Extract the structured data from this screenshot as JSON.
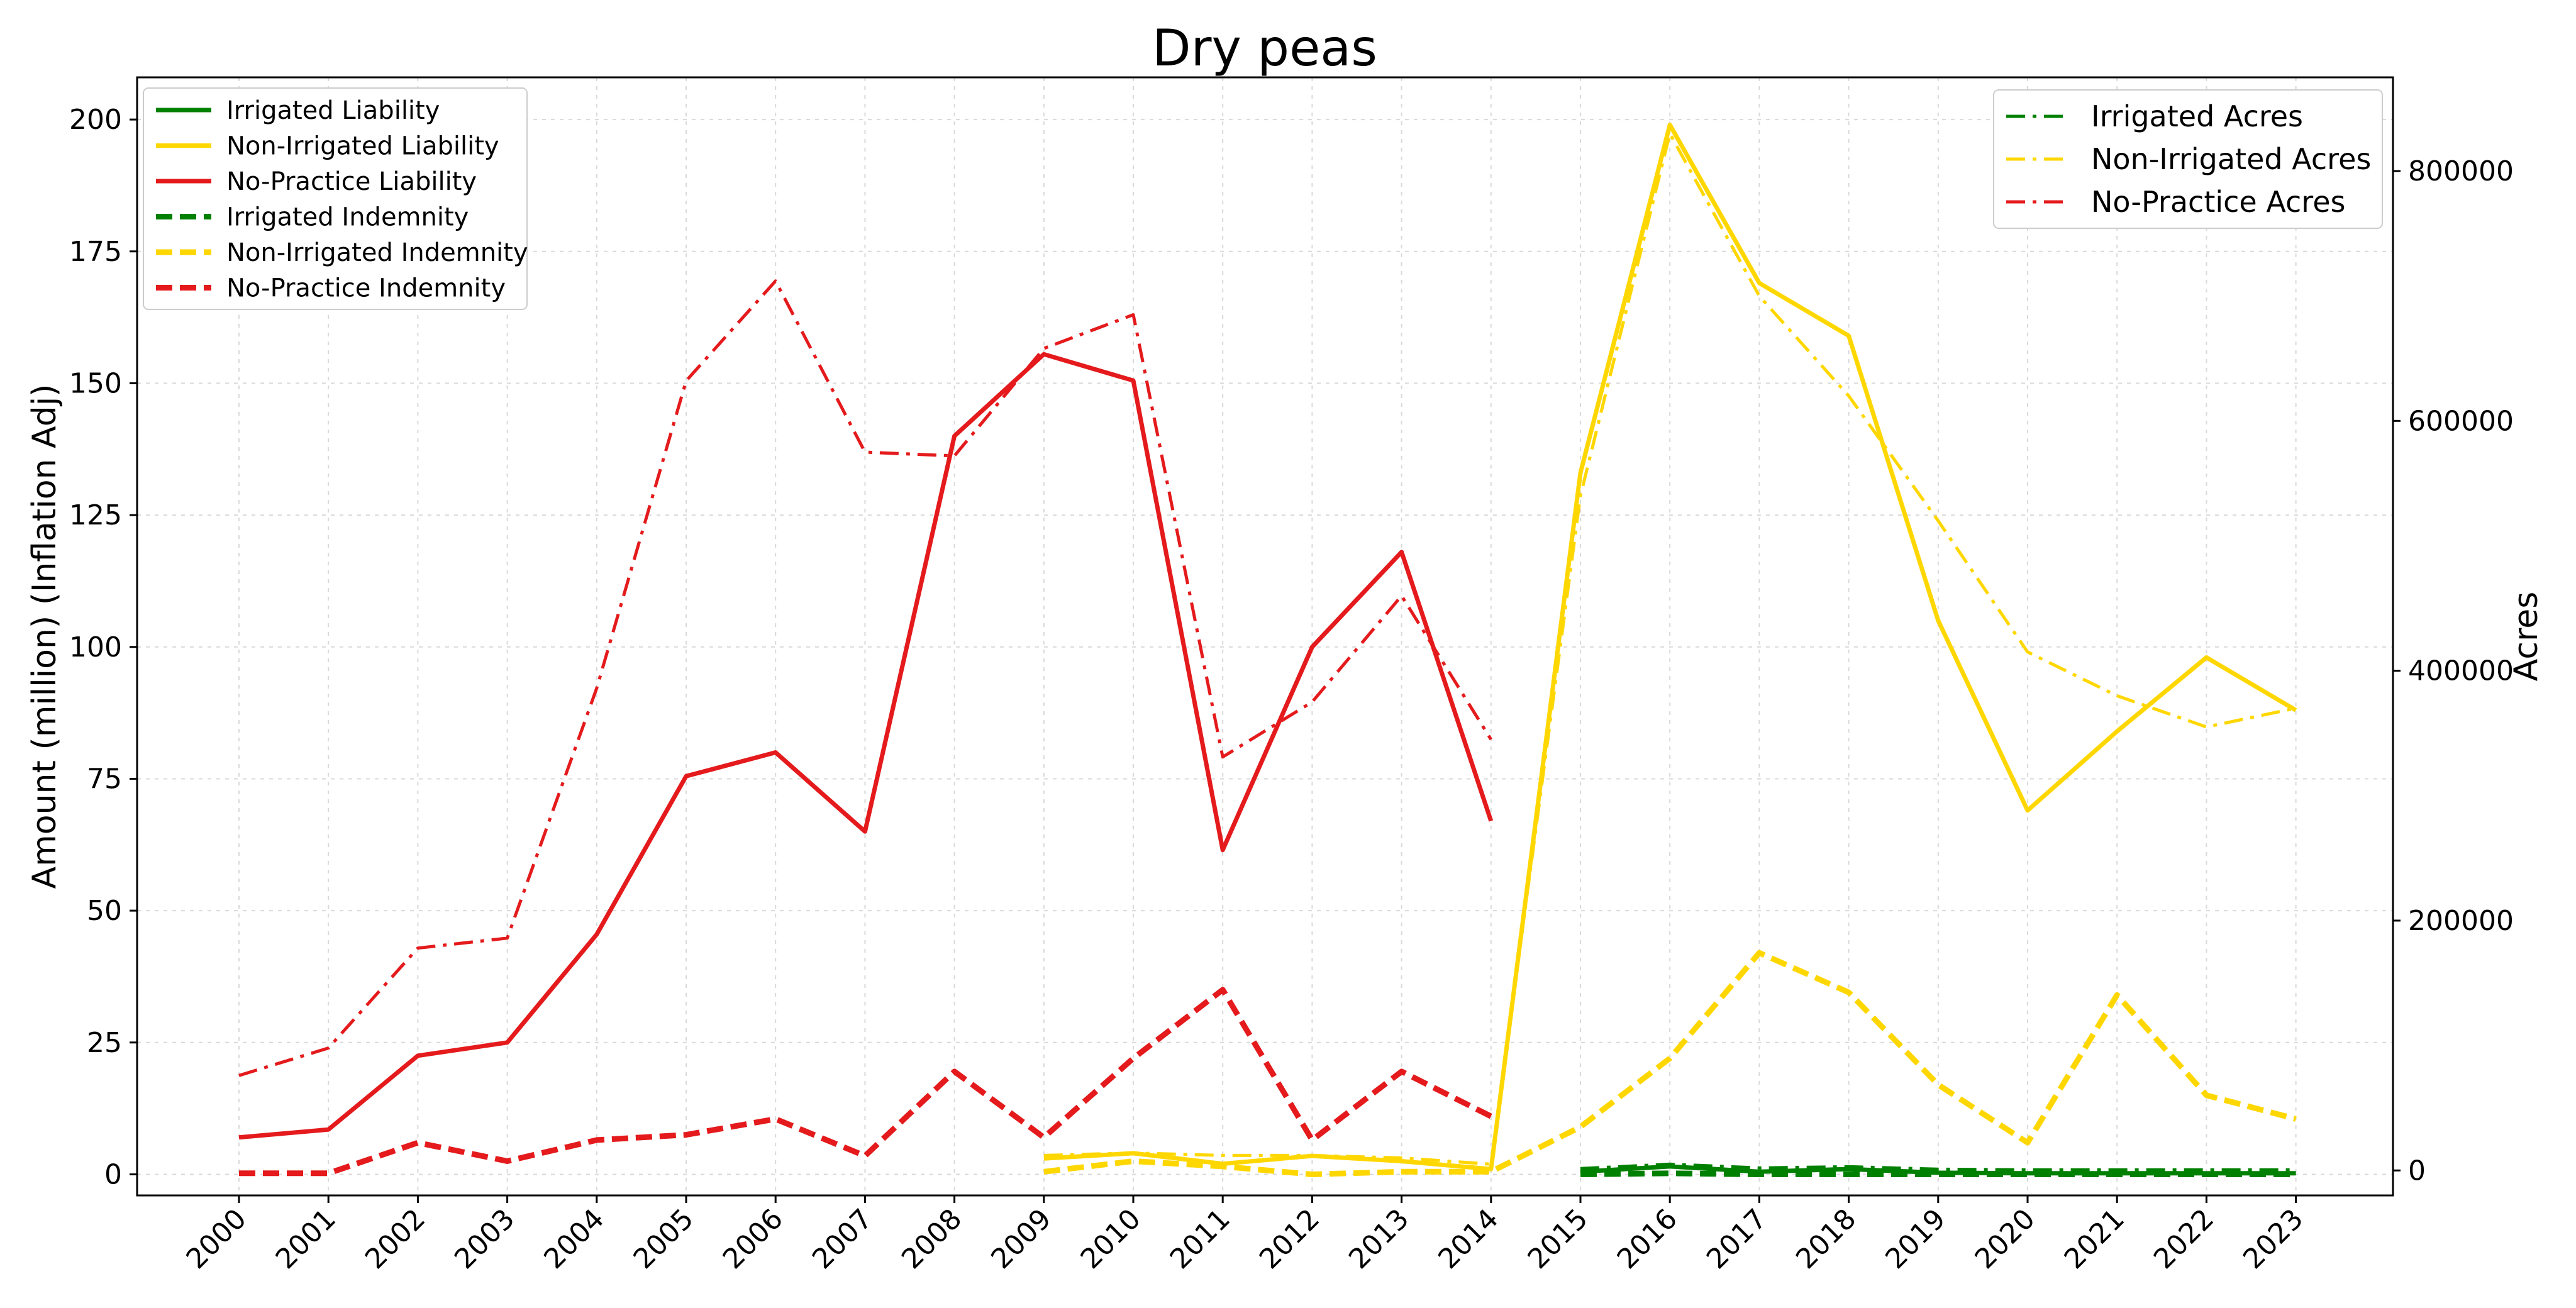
{
  "chart_data": {
    "type": "line",
    "title": "Dry peas",
    "ylabel": "Amount (million) (Inflation Adj)",
    "y2label": "Acres",
    "ylim": [
      -4,
      208
    ],
    "y2lim": [
      -20000,
      875000
    ],
    "grid": true,
    "categories": [
      "2000",
      "2001",
      "2002",
      "2003",
      "2004",
      "2005",
      "2006",
      "2007",
      "2008",
      "2009",
      "2010",
      "2011",
      "2012",
      "2013",
      "2014",
      "2015",
      "2016",
      "2017",
      "2018",
      "2019",
      "2020",
      "2021",
      "2022",
      "2023"
    ],
    "y_ticks": [
      "0",
      "25",
      "50",
      "75",
      "100",
      "125",
      "150",
      "175",
      "200"
    ],
    "y2_ticks": [
      "0",
      "200000",
      "400000",
      "600000",
      "800000"
    ],
    "legend_left_placement": "upper-left",
    "legend_right_placement": "upper-right",
    "series": [
      {
        "name": "Irrigated Liability",
        "axis": "left",
        "style": "solid",
        "color": "#008000",
        "values": [
          null,
          null,
          null,
          null,
          null,
          null,
          null,
          null,
          null,
          null,
          null,
          null,
          null,
          null,
          null,
          0.5,
          1.5,
          0.5,
          1.0,
          0.3,
          0.2,
          0.2,
          0.2,
          0.2
        ]
      },
      {
        "name": "Non-Irrigated Liability",
        "axis": "left",
        "style": "solid",
        "color": "#FFD700",
        "values": [
          null,
          null,
          null,
          null,
          null,
          null,
          null,
          null,
          null,
          3.0,
          4.0,
          2.0,
          3.5,
          2.5,
          1.0,
          133,
          199,
          169,
          159,
          105,
          69,
          84,
          98,
          88
        ]
      },
      {
        "name": "No-Practice Liability",
        "axis": "left",
        "style": "solid",
        "color": "#E41A1C",
        "values": [
          7,
          8.5,
          22.5,
          25,
          45.5,
          75.5,
          80,
          65,
          140,
          155.5,
          150.5,
          61.5,
          100,
          118,
          67,
          null,
          null,
          null,
          null,
          null,
          null,
          null,
          null,
          null
        ]
      },
      {
        "name": "Irrigated Indemnity",
        "axis": "left",
        "style": "dashed",
        "color": "#008000",
        "values": [
          null,
          null,
          null,
          null,
          null,
          null,
          null,
          null,
          null,
          null,
          null,
          null,
          null,
          null,
          null,
          0.0,
          0.2,
          0.0,
          0.0,
          0.0,
          0.0,
          0.0,
          0.0,
          0.0
        ]
      },
      {
        "name": "Non-Irrigated Indemnity",
        "axis": "left",
        "style": "dashed",
        "color": "#FFD700",
        "values": [
          null,
          null,
          null,
          null,
          null,
          null,
          null,
          null,
          null,
          0.5,
          2.5,
          1.5,
          0.0,
          0.5,
          0.5,
          9,
          22,
          42,
          34.5,
          17,
          6,
          34,
          15,
          10.5
        ]
      },
      {
        "name": "No-Practice Indemnity",
        "axis": "left",
        "style": "dashed",
        "color": "#E41A1C",
        "values": [
          0.2,
          0.2,
          6,
          2.5,
          6.5,
          7.5,
          10.5,
          3.5,
          19.5,
          7,
          22,
          35,
          6.5,
          19.5,
          11,
          null,
          null,
          null,
          null,
          null,
          null,
          null,
          null,
          null
        ]
      },
      {
        "name": "Irrigated Acres",
        "axis": "right",
        "style": "dashdot",
        "color": "#008000",
        "values": [
          null,
          null,
          null,
          null,
          null,
          null,
          null,
          null,
          null,
          null,
          null,
          null,
          null,
          null,
          null,
          1500,
          5000,
          2000,
          3000,
          1000,
          500,
          500,
          500,
          500
        ]
      },
      {
        "name": "Non-Irrigated Acres",
        "axis": "right",
        "style": "dashdot",
        "color": "#FFD700",
        "values": [
          null,
          null,
          null,
          null,
          null,
          null,
          null,
          null,
          null,
          12000,
          14000,
          12000,
          12000,
          10000,
          5000,
          540000,
          830000,
          700000,
          620000,
          520000,
          415000,
          380000,
          355000,
          370000
        ]
      },
      {
        "name": "No-Practice Acres",
        "axis": "right",
        "style": "dashdot",
        "color": "#E41A1C",
        "values": [
          76000,
          98000,
          178000,
          186000,
          386000,
          632000,
          712000,
          575000,
          572000,
          658000,
          685000,
          331000,
          375000,
          460000,
          345000,
          null,
          null,
          null,
          null,
          null,
          null,
          null,
          null,
          null
        ]
      }
    ]
  }
}
